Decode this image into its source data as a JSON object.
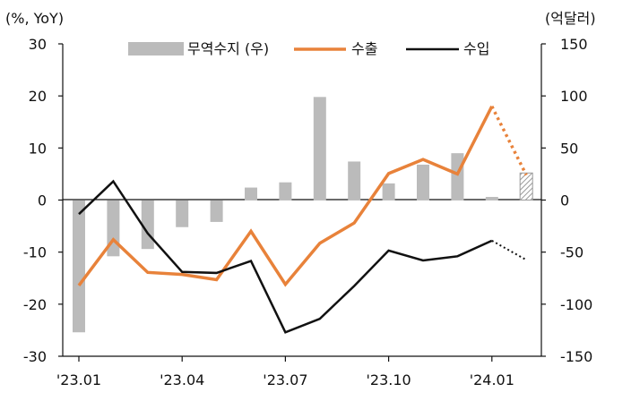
{
  "chart_data": {
    "type": "bar+line",
    "left_axis": {
      "label": "(%, YoY)",
      "ylim": [
        -30,
        30
      ],
      "ticks": [
        30,
        20,
        10,
        0,
        -10,
        -20,
        -30
      ]
    },
    "right_axis": {
      "label": "(억달러)",
      "ylim": [
        -150,
        150
      ],
      "ticks": [
        150,
        100,
        50,
        0,
        -50,
        -100,
        -150
      ]
    },
    "x_ticks": [
      "'23.01",
      "'23.04",
      "'23.07",
      "'23.10",
      "'24.01"
    ],
    "months": [
      "23.01",
      "23.02",
      "23.03",
      "23.04",
      "23.05",
      "23.06",
      "23.07",
      "23.08",
      "23.09",
      "23.10",
      "23.11",
      "23.12",
      "24.01",
      "24.02"
    ],
    "series": [
      {
        "name": "무역수지 (우)",
        "type": "bar",
        "axis": "right",
        "color": "#bbbbbb",
        "values": [
          -127,
          -54,
          -47,
          -26,
          -21,
          12,
          17,
          99,
          37,
          16,
          34,
          45,
          3,
          26
        ],
        "projected_from_index": 13
      },
      {
        "name": "수출",
        "type": "line",
        "axis": "left",
        "color": "#e8823a",
        "values": [
          -16.4,
          -7.6,
          -13.9,
          -14.3,
          -15.3,
          -6.0,
          -16.2,
          -8.3,
          -4.4,
          5.1,
          7.8,
          5.0,
          18.0,
          4.8
        ],
        "projected_from_index": 12
      },
      {
        "name": "수입",
        "type": "line",
        "axis": "left",
        "color": "#111111",
        "values": [
          -2.7,
          3.6,
          -6.4,
          -13.8,
          -14.0,
          -11.7,
          -25.4,
          -22.8,
          -16.5,
          -9.7,
          -11.6,
          -10.8,
          -7.8,
          -11.5
        ],
        "projected_from_index": 12
      }
    ],
    "legend_position": "top"
  }
}
